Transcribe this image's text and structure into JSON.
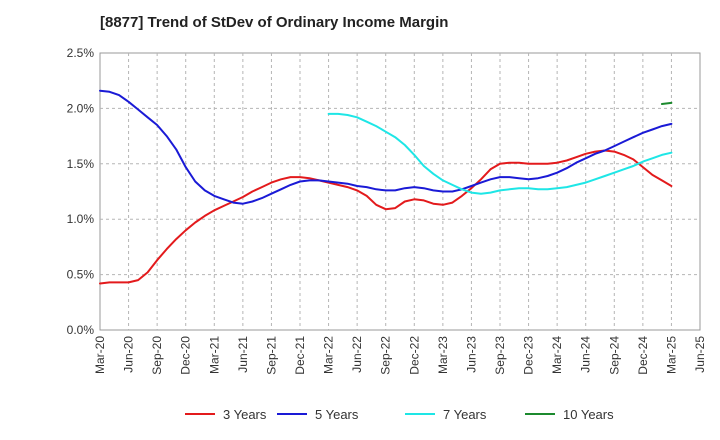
{
  "chart_data": {
    "type": "line",
    "title": "[8877]  Trend of StDev of Ordinary Income Margin",
    "xlabel": "",
    "ylabel": "",
    "ylim": [
      0,
      0.025
    ],
    "y_ticks": [
      "0.0%",
      "0.5%",
      "1.0%",
      "1.5%",
      "2.0%",
      "2.5%"
    ],
    "x_ticks": [
      "Mar-20",
      "Jun-20",
      "Sep-20",
      "Dec-20",
      "Mar-21",
      "Jun-21",
      "Sep-21",
      "Dec-21",
      "Mar-22",
      "Jun-22",
      "Sep-22",
      "Dec-22",
      "Mar-23",
      "Jun-23",
      "Sep-23",
      "Dec-23",
      "Mar-24",
      "Jun-24",
      "Sep-24",
      "Dec-24",
      "Mar-25",
      "Jun-25"
    ],
    "grid": true,
    "legend_position": "bottom",
    "series": [
      {
        "name": "3 Years",
        "color": "#e31a1c",
        "x": [
          "Mar-20",
          "Apr-20",
          "May-20",
          "Jun-20",
          "Jul-20",
          "Aug-20",
          "Sep-20",
          "Oct-20",
          "Nov-20",
          "Dec-20",
          "Jan-21",
          "Feb-21",
          "Mar-21",
          "Apr-21",
          "May-21",
          "Jun-21",
          "Jul-21",
          "Aug-21",
          "Sep-21",
          "Oct-21",
          "Nov-21",
          "Dec-21",
          "Jan-22",
          "Feb-22",
          "Mar-22",
          "Apr-22",
          "May-22",
          "Jun-22",
          "Jul-22",
          "Aug-22",
          "Sep-22",
          "Oct-22",
          "Nov-22",
          "Dec-22",
          "Jan-23",
          "Feb-23",
          "Mar-23",
          "Apr-23",
          "May-23",
          "Jun-23",
          "Jul-23",
          "Aug-23",
          "Sep-23",
          "Oct-23",
          "Nov-23",
          "Dec-23",
          "Jan-24",
          "Feb-24",
          "Mar-24",
          "Apr-24",
          "May-24",
          "Jun-24",
          "Jul-24",
          "Aug-24",
          "Sep-24",
          "Oct-24",
          "Nov-24",
          "Dec-24",
          "Jan-25",
          "Feb-25",
          "Mar-25"
        ],
        "values": [
          0.0042,
          0.0043,
          0.0043,
          0.0043,
          0.0045,
          0.0052,
          0.0063,
          0.0073,
          0.0082,
          0.009,
          0.0097,
          0.0103,
          0.0108,
          0.0112,
          0.0116,
          0.012,
          0.0125,
          0.0129,
          0.0133,
          0.0136,
          0.0138,
          0.0138,
          0.0137,
          0.0135,
          0.0133,
          0.0131,
          0.0129,
          0.0126,
          0.0121,
          0.0113,
          0.0109,
          0.011,
          0.0116,
          0.0118,
          0.0117,
          0.0114,
          0.0113,
          0.0115,
          0.0121,
          0.0128,
          0.0136,
          0.0145,
          0.015,
          0.0151,
          0.0151,
          0.015,
          0.015,
          0.015,
          0.0151,
          0.0153,
          0.0156,
          0.0159,
          0.0161,
          0.0162,
          0.0161,
          0.0158,
          0.0154,
          0.0147,
          0.014,
          0.0135,
          0.013
        ]
      },
      {
        "name": "5 Years",
        "color": "#1a1ad6",
        "x": [
          "Mar-20",
          "Apr-20",
          "May-20",
          "Jun-20",
          "Jul-20",
          "Aug-20",
          "Sep-20",
          "Oct-20",
          "Nov-20",
          "Dec-20",
          "Jan-21",
          "Feb-21",
          "Mar-21",
          "Apr-21",
          "May-21",
          "Jun-21",
          "Jul-21",
          "Aug-21",
          "Sep-21",
          "Oct-21",
          "Nov-21",
          "Dec-21",
          "Jan-22",
          "Feb-22",
          "Mar-22",
          "Apr-22",
          "May-22",
          "Jun-22",
          "Jul-22",
          "Aug-22",
          "Sep-22",
          "Oct-22",
          "Nov-22",
          "Dec-22",
          "Jan-23",
          "Feb-23",
          "Mar-23",
          "Apr-23",
          "May-23",
          "Jun-23",
          "Jul-23",
          "Aug-23",
          "Sep-23",
          "Oct-23",
          "Nov-23",
          "Dec-23",
          "Jan-24",
          "Feb-24",
          "Mar-24",
          "Apr-24",
          "May-24",
          "Jun-24",
          "Jul-24",
          "Aug-24",
          "Sep-24",
          "Oct-24",
          "Nov-24",
          "Dec-24",
          "Jan-25",
          "Feb-25",
          "Mar-25"
        ],
        "values": [
          0.0216,
          0.0215,
          0.0212,
          0.0206,
          0.0199,
          0.0192,
          0.0185,
          0.0175,
          0.0163,
          0.0147,
          0.0134,
          0.0126,
          0.0121,
          0.0118,
          0.0115,
          0.0114,
          0.0116,
          0.0119,
          0.0123,
          0.0127,
          0.0131,
          0.0134,
          0.0135,
          0.0135,
          0.0134,
          0.0133,
          0.0132,
          0.013,
          0.0129,
          0.0127,
          0.0126,
          0.0126,
          0.0128,
          0.0129,
          0.0128,
          0.0126,
          0.0125,
          0.0125,
          0.0127,
          0.013,
          0.0133,
          0.0136,
          0.0138,
          0.0138,
          0.0137,
          0.0136,
          0.0137,
          0.0139,
          0.0142,
          0.0146,
          0.0151,
          0.0155,
          0.0159,
          0.0162,
          0.0166,
          0.017,
          0.0174,
          0.0178,
          0.0181,
          0.0184,
          0.0186
        ]
      },
      {
        "name": "7 Years",
        "color": "#1ee6e6",
        "x": [
          "Mar-22",
          "Apr-22",
          "May-22",
          "Jun-22",
          "Jul-22",
          "Aug-22",
          "Sep-22",
          "Oct-22",
          "Nov-22",
          "Dec-22",
          "Jan-23",
          "Feb-23",
          "Mar-23",
          "Apr-23",
          "May-23",
          "Jun-23",
          "Jul-23",
          "Aug-23",
          "Sep-23",
          "Oct-23",
          "Nov-23",
          "Dec-23",
          "Jan-24",
          "Feb-24",
          "Mar-24",
          "Apr-24",
          "May-24",
          "Jun-24",
          "Jul-24",
          "Aug-24",
          "Sep-24",
          "Oct-24",
          "Nov-24",
          "Dec-24",
          "Jan-25",
          "Feb-25",
          "Mar-25"
        ],
        "values": [
          0.0195,
          0.0195,
          0.0194,
          0.0192,
          0.0188,
          0.0184,
          0.0179,
          0.0174,
          0.0167,
          0.0158,
          0.0148,
          0.0141,
          0.0135,
          0.0131,
          0.0127,
          0.0124,
          0.0123,
          0.0124,
          0.0126,
          0.0127,
          0.0128,
          0.0128,
          0.0127,
          0.0127,
          0.0128,
          0.0129,
          0.0131,
          0.0133,
          0.0136,
          0.0139,
          0.0142,
          0.0145,
          0.0148,
          0.0152,
          0.0155,
          0.0158,
          0.016
        ]
      },
      {
        "name": "10 Years",
        "color": "#1c8a2e",
        "x": [
          "Feb-25",
          "Mar-25"
        ],
        "values": [
          0.0204,
          0.0205
        ]
      }
    ]
  }
}
